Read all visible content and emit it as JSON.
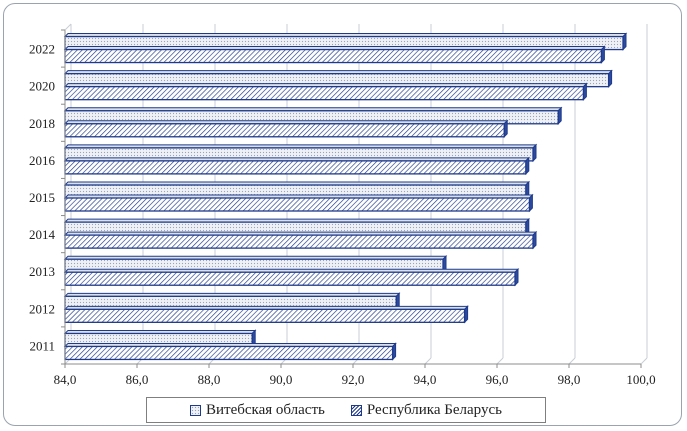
{
  "chart_data": {
    "type": "bar",
    "orientation": "horizontal",
    "categories": [
      "2022",
      "2020",
      "2018",
      "2016",
      "2015",
      "2014",
      "2013",
      "2012",
      "2011"
    ],
    "series": [
      {
        "name": "Витебская область",
        "pattern": "dots",
        "values": [
          99.5,
          99.1,
          97.7,
          97.0,
          96.8,
          96.8,
          94.5,
          93.2,
          89.2
        ]
      },
      {
        "name": "Республика Беларусь",
        "pattern": "hatch",
        "values": [
          98.9,
          98.4,
          96.2,
          96.8,
          96.9,
          97.0,
          96.5,
          95.1,
          93.1
        ]
      }
    ],
    "xlim": [
      84.0,
      100.0
    ],
    "xticks": [
      "84,0",
      "86,0",
      "88,0",
      "90,0",
      "92,0",
      "94,0",
      "96,0",
      "98,0",
      "100,0"
    ],
    "grid": "vertical",
    "legend_position": "bottom",
    "title": "",
    "xlabel": "",
    "ylabel": ""
  },
  "colors": {
    "bar_edge": "#1f3a8a",
    "dots_fill": "#eef1f5",
    "grid": "#c8cdd4",
    "axis": "#8c8c8c"
  }
}
